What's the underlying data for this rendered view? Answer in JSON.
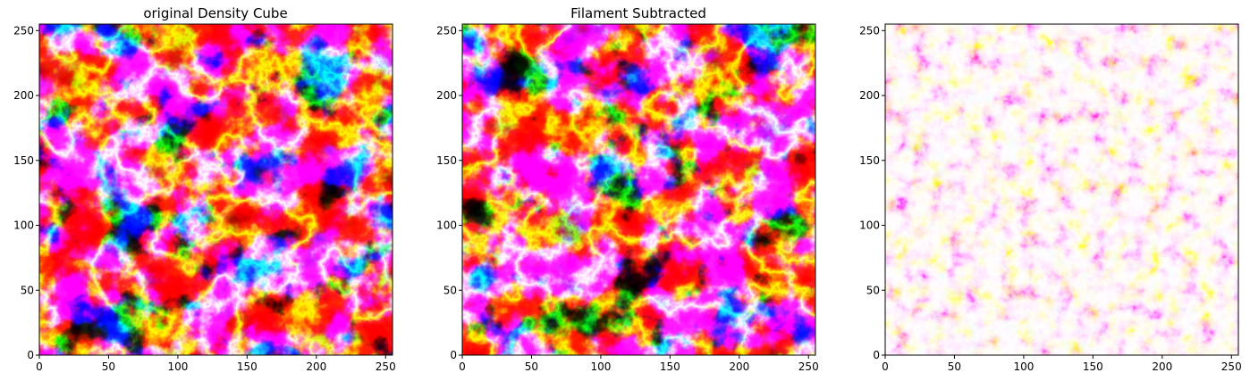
{
  "chart_data": [
    {
      "type": "heatmap",
      "title": "original Density Cube",
      "xlim": [
        0,
        255
      ],
      "ylim": [
        0,
        255
      ],
      "xticks": [
        0,
        50,
        100,
        150,
        200,
        250
      ],
      "yticks": [
        0,
        50,
        100,
        150,
        200,
        250
      ],
      "colormap": "seismic",
      "colors": [
        "#00004c",
        "#0000ff",
        "#ffffff",
        "#ff0000",
        "#7f0000"
      ]
    },
    {
      "type": "heatmap",
      "title": "Filament Subtracted",
      "xlim": [
        0,
        255
      ],
      "ylim": [
        0,
        255
      ],
      "xticks": [
        0,
        50,
        100,
        150,
        200,
        250
      ],
      "yticks": [
        0,
        50,
        100,
        150,
        200,
        250
      ],
      "colormap": "seismic",
      "colors": [
        "#00004c",
        "#0000ff",
        "#ffffff",
        "#ff0000",
        "#7f0000"
      ]
    },
    {
      "type": "heatmap",
      "title": "",
      "xlim": [
        0,
        255
      ],
      "ylim": [
        0,
        255
      ],
      "xticks": [
        0,
        50,
        100,
        150,
        200,
        250
      ],
      "yticks": [
        0,
        50,
        100,
        150,
        200,
        250
      ],
      "colormap": "seismic",
      "colors": [
        "#f6f6ff",
        "#ffffff",
        "#ff0000",
        "#7f0000"
      ]
    }
  ]
}
